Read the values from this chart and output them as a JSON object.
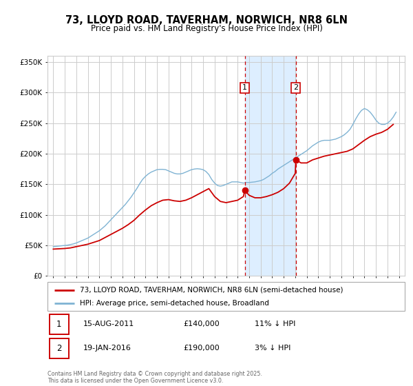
{
  "title": "73, LLOYD ROAD, TAVERHAM, NORWICH, NR8 6LN",
  "subtitle": "Price paid vs. HM Land Registry's House Price Index (HPI)",
  "legend_line1": "73, LLOYD ROAD, TAVERHAM, NORWICH, NR8 6LN (semi-detached house)",
  "legend_line2": "HPI: Average price, semi-detached house, Broadland",
  "sale1_label": "1",
  "sale1_date": "15-AUG-2011",
  "sale1_price": "£140,000",
  "sale1_hpi": "11% ↓ HPI",
  "sale1_year": 2011.62,
  "sale1_value": 140000,
  "sale2_label": "2",
  "sale2_date": "19-JAN-2016",
  "sale2_price": "£190,000",
  "sale2_hpi": "3% ↓ HPI",
  "sale2_year": 2016.05,
  "sale2_value": 190000,
  "vline1_year": 2011.62,
  "vline2_year": 2016.05,
  "shade_start": 2011.62,
  "shade_end": 2016.05,
  "red_color": "#cc0000",
  "blue_color": "#7fb3d3",
  "vline_color": "#cc0000",
  "shade_color": "#ddeeff",
  "bg_color": "#ffffff",
  "grid_color": "#cccccc",
  "ylim_min": 0,
  "ylim_max": 360000,
  "ylabel_ticks": [
    0,
    50000,
    100000,
    150000,
    200000,
    250000,
    300000,
    350000
  ],
  "ylabel_labels": [
    "£0",
    "£50K",
    "£100K",
    "£150K",
    "£200K",
    "£250K",
    "£300K",
    "£350K"
  ],
  "xlim_min": 1994.5,
  "xlim_max": 2025.5,
  "footer": "Contains HM Land Registry data © Crown copyright and database right 2025.\nThis data is licensed under the Open Government Licence v3.0.",
  "hpi_years": [
    1995.0,
    1995.25,
    1995.5,
    1995.75,
    1996.0,
    1996.25,
    1996.5,
    1996.75,
    1997.0,
    1997.25,
    1997.5,
    1997.75,
    1998.0,
    1998.25,
    1998.5,
    1998.75,
    1999.0,
    1999.25,
    1999.5,
    1999.75,
    2000.0,
    2000.25,
    2000.5,
    2000.75,
    2001.0,
    2001.25,
    2001.5,
    2001.75,
    2002.0,
    2002.25,
    2002.5,
    2002.75,
    2003.0,
    2003.25,
    2003.5,
    2003.75,
    2004.0,
    2004.25,
    2004.5,
    2004.75,
    2005.0,
    2005.25,
    2005.5,
    2005.75,
    2006.0,
    2006.25,
    2006.5,
    2006.75,
    2007.0,
    2007.25,
    2007.5,
    2007.75,
    2008.0,
    2008.25,
    2008.5,
    2008.75,
    2009.0,
    2009.25,
    2009.5,
    2009.75,
    2010.0,
    2010.25,
    2010.5,
    2010.75,
    2011.0,
    2011.25,
    2011.5,
    2011.75,
    2012.0,
    2012.25,
    2012.5,
    2012.75,
    2013.0,
    2013.25,
    2013.5,
    2013.75,
    2014.0,
    2014.25,
    2014.5,
    2014.75,
    2015.0,
    2015.25,
    2015.5,
    2015.75,
    2016.0,
    2016.25,
    2016.5,
    2016.75,
    2017.0,
    2017.25,
    2017.5,
    2017.75,
    2018.0,
    2018.25,
    2018.5,
    2018.75,
    2019.0,
    2019.25,
    2019.5,
    2019.75,
    2020.0,
    2020.25,
    2020.5,
    2020.75,
    2021.0,
    2021.25,
    2021.5,
    2021.75,
    2022.0,
    2022.25,
    2022.5,
    2022.75,
    2023.0,
    2023.25,
    2023.5,
    2023.75,
    2024.0,
    2024.25,
    2024.5,
    2024.75
  ],
  "hpi_values": [
    48000,
    48500,
    49000,
    49500,
    50000,
    50500,
    51500,
    52500,
    54000,
    56000,
    58000,
    60000,
    62000,
    65000,
    68000,
    71000,
    74000,
    78000,
    82000,
    87000,
    92000,
    97000,
    102000,
    107000,
    112000,
    117000,
    123000,
    129000,
    136000,
    143000,
    151000,
    158000,
    163000,
    167000,
    170000,
    172000,
    174000,
    174500,
    174500,
    174000,
    172000,
    170000,
    168000,
    167000,
    167000,
    168000,
    170000,
    172000,
    174000,
    175000,
    175500,
    175000,
    174000,
    171000,
    166000,
    158000,
    152000,
    148000,
    147000,
    148000,
    150000,
    152000,
    154000,
    154000,
    154000,
    153000,
    152000,
    153000,
    153000,
    153500,
    154000,
    155000,
    156000,
    158000,
    161000,
    164000,
    168000,
    171000,
    175000,
    178000,
    181000,
    184000,
    187000,
    190000,
    193000,
    196000,
    199000,
    202000,
    205000,
    209000,
    213000,
    216000,
    219000,
    221000,
    222000,
    222000,
    222000,
    223000,
    224000,
    226000,
    228000,
    231000,
    235000,
    240000,
    248000,
    257000,
    265000,
    271000,
    274000,
    272000,
    268000,
    262000,
    255000,
    250000,
    248000,
    248000,
    250000,
    254000,
    260000,
    268000
  ],
  "red_years": [
    1995.0,
    1995.5,
    1996.0,
    1996.5,
    1997.0,
    1997.5,
    1998.0,
    1998.5,
    1999.0,
    1999.5,
    2000.0,
    2000.5,
    2001.0,
    2001.5,
    2002.0,
    2002.5,
    2003.0,
    2003.5,
    2004.0,
    2004.5,
    2005.0,
    2005.5,
    2006.0,
    2006.5,
    2007.0,
    2007.5,
    2008.0,
    2008.5,
    2009.0,
    2009.5,
    2010.0,
    2010.5,
    2011.0,
    2011.5,
    2011.62,
    2012.0,
    2012.5,
    2013.0,
    2013.5,
    2014.0,
    2014.5,
    2015.0,
    2015.5,
    2016.0,
    2016.05,
    2016.5,
    2017.0,
    2017.5,
    2018.0,
    2018.5,
    2019.0,
    2019.5,
    2020.0,
    2020.5,
    2021.0,
    2021.5,
    2022.0,
    2022.5,
    2023.0,
    2023.5,
    2024.0,
    2024.5
  ],
  "red_values": [
    44000,
    44500,
    45000,
    46000,
    48000,
    50000,
    52000,
    55000,
    58000,
    63000,
    68000,
    73000,
    78000,
    84000,
    91000,
    100000,
    108000,
    115000,
    120000,
    124000,
    125000,
    123000,
    122000,
    124000,
    128000,
    133000,
    138000,
    143000,
    130000,
    122000,
    120000,
    122000,
    124000,
    130000,
    140000,
    132000,
    128000,
    128000,
    130000,
    133000,
    137000,
    143000,
    152000,
    168000,
    190000,
    185000,
    185000,
    190000,
    193000,
    196000,
    198000,
    200000,
    202000,
    204000,
    208000,
    215000,
    222000,
    228000,
    232000,
    235000,
    240000,
    248000
  ]
}
